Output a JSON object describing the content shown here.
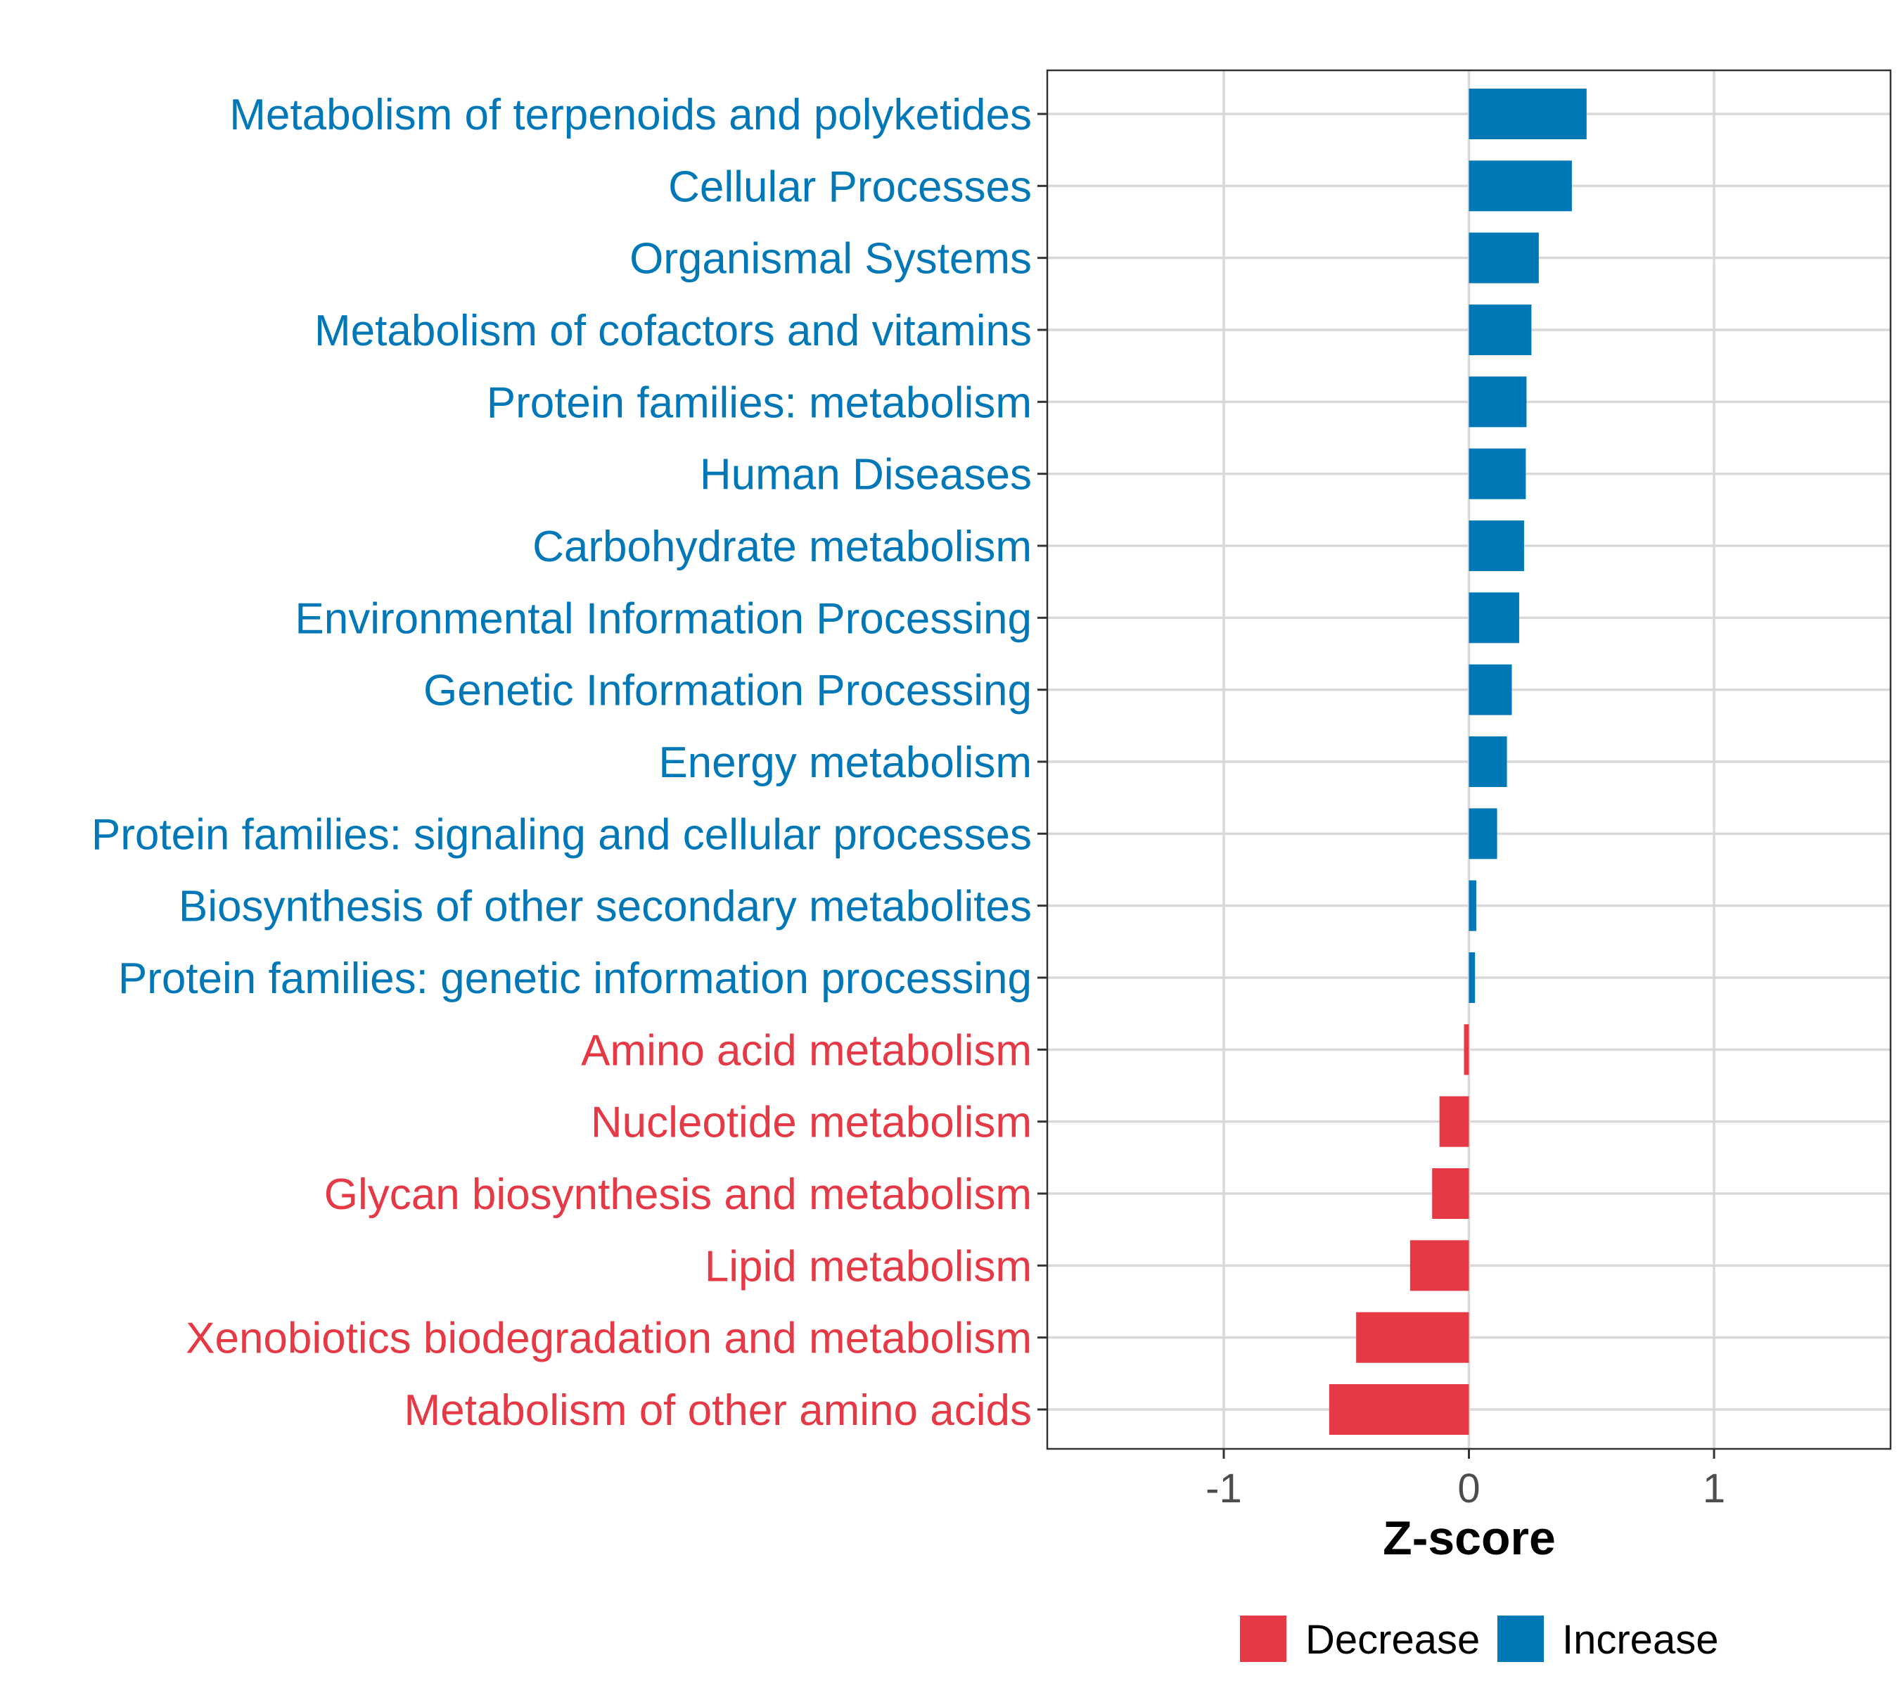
{
  "chart_data": {
    "type": "bar",
    "orientation": "horizontal",
    "categories": [
      "Metabolism of terpenoids and polyketides",
      "Cellular Processes",
      "Organismal Systems",
      "Metabolism of cofactors and vitamins",
      "Protein families: metabolism",
      "Human Diseases",
      "Carbohydrate metabolism",
      "Environmental Information Processing",
      "Genetic Information Processing",
      "Energy metabolism",
      "Protein families: signaling and cellular processes",
      "Biosynthesis of other secondary metabolites",
      "Protein families: genetic information processing",
      "Amino acid metabolism",
      "Nucleotide metabolism",
      "Glycan biosynthesis and metabolism",
      "Lipid metabolism",
      "Xenobiotics biodegradation and metabolism",
      "Metabolism of other amino acids"
    ],
    "values": [
      0.48,
      0.42,
      0.285,
      0.255,
      0.235,
      0.232,
      0.225,
      0.205,
      0.175,
      0.155,
      0.115,
      0.03,
      0.025,
      -0.02,
      -0.12,
      -0.15,
      -0.24,
      -0.46,
      -0.57
    ],
    "direction": [
      "Increase",
      "Increase",
      "Increase",
      "Increase",
      "Increase",
      "Increase",
      "Increase",
      "Increase",
      "Increase",
      "Increase",
      "Increase",
      "Increase",
      "Increase",
      "Decrease",
      "Decrease",
      "Decrease",
      "Decrease",
      "Decrease",
      "Decrease"
    ],
    "xlabel": "Z-score",
    "ylabel": "",
    "xlim": [
      -1.72,
      1.72
    ],
    "xticks": [
      -1,
      0,
      1
    ],
    "xtick_labels": [
      "-1",
      "0",
      "1"
    ],
    "grid": true,
    "legend": {
      "position": "bottom",
      "entries": [
        {
          "label": "Decrease",
          "color": "#E63946"
        },
        {
          "label": "Increase",
          "color": "#0077B6"
        }
      ]
    },
    "colors": {
      "Decrease": "#E63946",
      "Increase": "#0077B6"
    }
  }
}
